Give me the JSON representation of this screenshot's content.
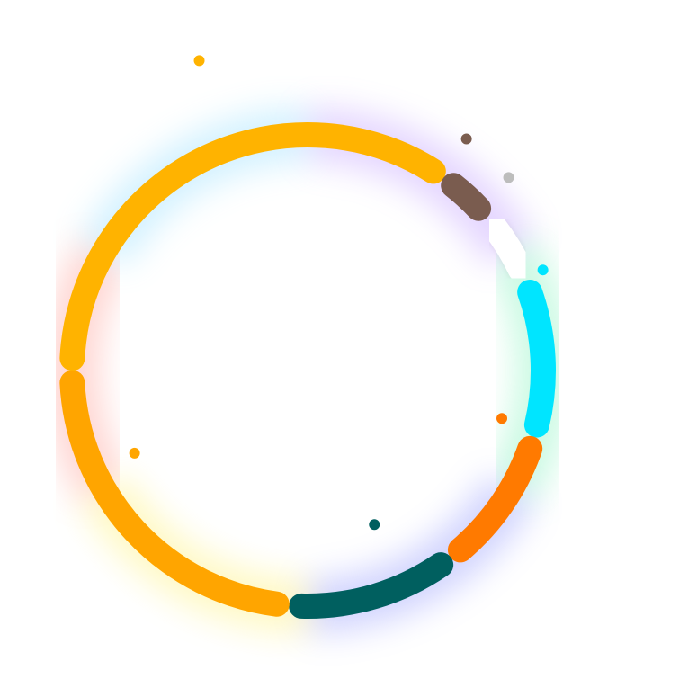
{
  "chart_data": {
    "type": "pie",
    "variant": "donut-ring-with-pins",
    "title": "",
    "legend": "none",
    "data_labels": "none",
    "start_angle_deg": 180,
    "direction": "clockwise",
    "slices": [
      {
        "key": "s1",
        "value": 37.5,
        "color": "#FFB300",
        "pin": true
      },
      {
        "key": "s2",
        "value": 2.6,
        "color": "#7A5C4F",
        "pin": true
      },
      {
        "key": "s3",
        "value": 3.8,
        "color": "#FFFFFF",
        "pin": true
      },
      {
        "key": "s4",
        "value": 10.3,
        "color": "#00E5FF",
        "pin": true
      },
      {
        "key": "s5",
        "value": 9.5,
        "color": "#FF7A00",
        "pin": true
      },
      {
        "key": "s6",
        "value": 11.3,
        "color": "#005F5F",
        "pin": true
      },
      {
        "key": "s7",
        "value": 25.0,
        "color": "#FFA500",
        "pin": true
      }
    ],
    "glow_colors": [
      "#B388FF",
      "#69F0AE",
      "#7C83FD",
      "#FFEE58",
      "#FF8A80",
      "#80D8FF"
    ]
  }
}
